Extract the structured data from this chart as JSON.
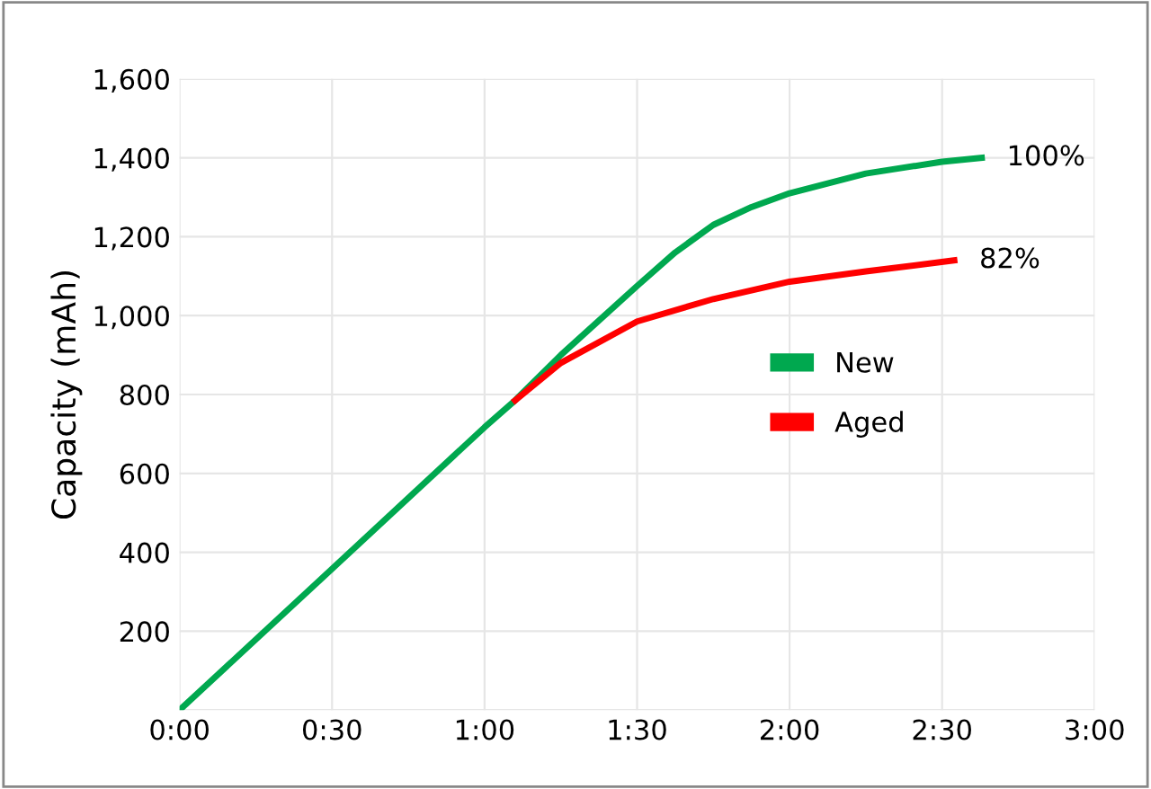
{
  "chart_data": {
    "type": "line",
    "ylabel": "Capacity (mAh)",
    "xlim": [
      0,
      3
    ],
    "xticks": [
      {
        "value": 0,
        "label": "0:00"
      },
      {
        "value": 0.5,
        "label": "0:30"
      },
      {
        "value": 1,
        "label": "1:00"
      },
      {
        "value": 1.5,
        "label": "1:30"
      },
      {
        "value": 2,
        "label": "2:00"
      },
      {
        "value": 2.5,
        "label": "2:30"
      },
      {
        "value": 3,
        "label": "3:00"
      }
    ],
    "ylim": [
      0,
      1600
    ],
    "yticks": [
      {
        "value": 0,
        "label": null
      },
      {
        "value": 200,
        "label": "200"
      },
      {
        "value": 400,
        "label": "400"
      },
      {
        "value": 600,
        "label": "600"
      },
      {
        "value": 800,
        "label": "800"
      },
      {
        "value": 1000,
        "label": "1,000"
      },
      {
        "value": 1200,
        "label": "1,200"
      },
      {
        "value": 1400,
        "label": "1,400"
      },
      {
        "value": 1600,
        "label": "1,600"
      }
    ],
    "series": [
      {
        "name": "New",
        "color": "#00a84f",
        "x": [
          0,
          0.5,
          1,
          1.1,
          1.25,
          1.5,
          1.625,
          1.75,
          1.875,
          2,
          2.25,
          2.5,
          2.63
        ],
        "values": [
          0,
          358,
          717,
          785,
          900,
          1075,
          1160,
          1230,
          1275,
          1310,
          1360,
          1390,
          1400
        ]
      },
      {
        "name": "Aged",
        "color": "#ff0000",
        "x": [
          1.1,
          1.25,
          1.5,
          1.75,
          2,
          2.25,
          2.54
        ],
        "values": [
          785,
          880,
          985,
          1042,
          1086,
          1112,
          1140
        ]
      }
    ],
    "annotations": [
      {
        "text": "100%",
        "x": 2.63,
        "y": 1400
      },
      {
        "text": "82%",
        "x": 2.54,
        "y": 1140
      }
    ],
    "grid": true,
    "legend": "center right",
    "marker": "none",
    "line_style": "solid"
  }
}
